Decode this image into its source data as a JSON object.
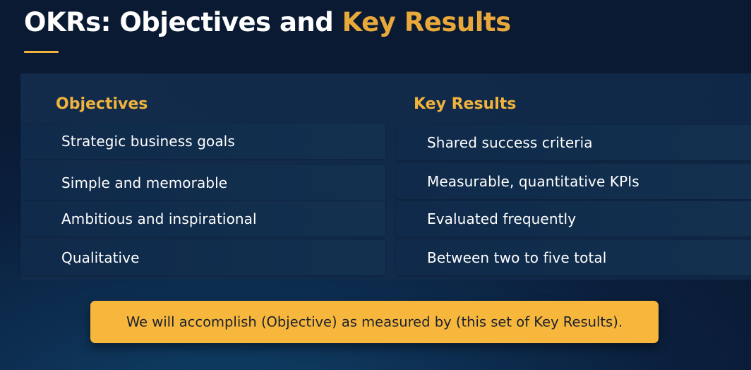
{
  "title": {
    "main": "OKRs: Objectives and ",
    "accent": "Key Results"
  },
  "objectives": {
    "heading": "Objectives",
    "items": [
      "Strategic business goals",
      "Simple and memorable",
      "Ambitious and inspirational",
      "Qualitative"
    ]
  },
  "key_results": {
    "heading": "Key Results",
    "items": [
      "Shared success criteria",
      "Measurable, quantitative KPIs",
      "Evaluated frequently",
      "Between two to five total"
    ]
  },
  "callout": {
    "text": "We will accomplish (Objective) as measured by (this set of Key Results)."
  },
  "colors": {
    "accent": "#f0b43c",
    "callout_bg": "#f6b73c",
    "background": "#0b1f3c"
  }
}
